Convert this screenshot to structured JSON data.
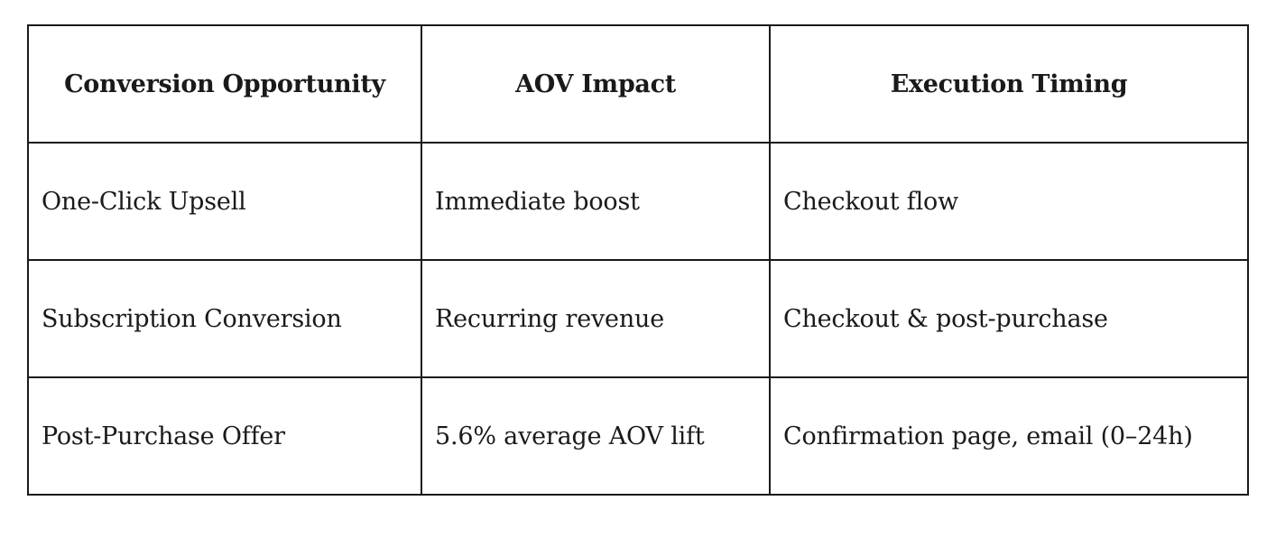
{
  "table": {
    "headers": [
      "Conversion Opportunity",
      "AOV Impact",
      "Execution Timing"
    ],
    "rows": [
      [
        "One-Click Upsell",
        "Immediate boost",
        "Checkout flow"
      ],
      [
        "Subscription Conversion",
        "Recurring revenue",
        "Checkout & post-purchase"
      ],
      [
        "Post-Purchase Offer",
        "5.6% average AOV lift",
        "Confirmation page, email (0–24h)"
      ]
    ]
  }
}
